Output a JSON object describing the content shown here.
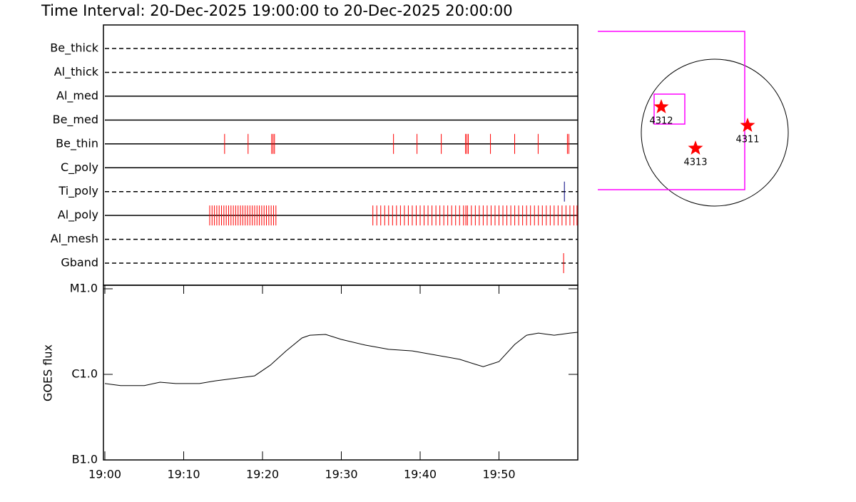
{
  "chart_data": [
    {
      "type": "event",
      "title": "Time Interval: 20-Dec-2025 19:00:00 to 20-Dec-2025 20:00:00",
      "categories": [
        "Be_thick",
        "Al_thick",
        "Al_med",
        "Be_med",
        "Be_thin",
        "C_poly",
        "Ti_poly",
        "Al_poly",
        "Al_mesh",
        "Gband"
      ],
      "line_styles": [
        "dashed",
        "dashed",
        "solid",
        "solid",
        "solid",
        "solid",
        "dashed",
        "solid",
        "dashed",
        "dashed"
      ],
      "event_colors": [
        "#ff0000",
        "#ff0000",
        "#ff0000",
        "#ff0000",
        "#ff0000",
        "#ff0000",
        "#00007f",
        "#ff0000",
        "#ff0000",
        "#ff0000"
      ],
      "xlim": [
        0,
        60
      ],
      "events": [
        [],
        [],
        [],
        [],
        [
          15.19,
          18.17,
          21.16,
          21.34,
          21.52,
          36.62,
          39.6,
          42.68,
          45.75,
          45.93,
          46.11,
          48.92,
          51.99,
          54.97,
          58.68,
          58.86
        ],
        [],
        [
          58.3
        ],
        [
          13.3,
          13.6,
          13.9,
          14.2,
          14.5,
          14.8,
          15.1,
          15.4,
          15.7,
          16.0,
          16.3,
          16.6,
          16.9,
          17.2,
          17.5,
          17.8,
          18.1,
          18.4,
          18.7,
          19.0,
          19.3,
          19.6,
          19.9,
          20.2,
          20.5,
          20.8,
          21.1,
          21.4,
          21.7,
          34.0,
          34.5,
          35.0,
          35.5,
          36.0,
          36.5,
          37.0,
          37.5,
          38.0,
          38.5,
          39.0,
          39.5,
          40.0,
          40.5,
          41.0,
          41.5,
          42.0,
          42.5,
          43.0,
          43.5,
          44.0,
          44.5,
          45.0,
          45.5,
          45.8,
          46.0,
          46.5,
          47.0,
          47.5,
          48.0,
          48.5,
          49.0,
          49.5,
          50.0,
          50.5,
          51.0,
          51.5,
          52.0,
          52.5,
          53.0,
          53.5,
          54.0,
          54.5,
          55.0,
          55.5,
          56.0,
          56.5,
          57.0,
          57.5,
          58.0,
          58.5,
          59.0,
          59.5,
          59.9
        ],
        [],
        [
          58.2
        ]
      ]
    },
    {
      "type": "line",
      "ylabel": "GOES flux",
      "log_scale": true,
      "color": "#000000",
      "x": [
        0,
        2,
        5,
        7,
        9,
        12,
        14,
        17,
        19,
        21,
        23,
        25,
        26,
        28,
        30,
        33,
        36,
        39,
        42,
        45,
        47,
        48,
        50,
        52,
        53.5,
        55,
        57,
        59,
        60
      ],
      "values": [
        7.8e-07,
        7.4e-07,
        7.4e-07,
        8.1e-07,
        7.8e-07,
        7.8e-07,
        8.4e-07,
        9.1e-07,
        9.6e-07,
        1.28e-06,
        1.88e-06,
        2.66e-06,
        2.87e-06,
        2.93e-06,
        2.56e-06,
        2.2e-06,
        1.96e-06,
        1.88e-06,
        1.68e-06,
        1.5e-06,
        1.31e-06,
        1.23e-06,
        1.41e-06,
        2.24e-06,
        2.87e-06,
        3.04e-06,
        2.87e-06,
        3.04e-06,
        3.1e-06
      ],
      "xlim": [
        0,
        60
      ],
      "xticks": [
        {
          "value": 0,
          "label": "19:00"
        },
        {
          "value": 10,
          "label": "19:10"
        },
        {
          "value": 20,
          "label": "19:20"
        },
        {
          "value": 30,
          "label": "19:30"
        },
        {
          "value": 40,
          "label": "19:40"
        },
        {
          "value": 50,
          "label": "19:50"
        }
      ],
      "ylim": [
        1e-07,
        1e-05
      ],
      "yticks": [
        {
          "value": 1e-07,
          "label": "B1.0"
        },
        {
          "value": 1e-06,
          "label": "C1.0"
        },
        {
          "value": 1e-05,
          "label": "M1.0"
        }
      ]
    }
  ],
  "map": {
    "regions": [
      "4312",
      "4313",
      "4311"
    ]
  }
}
